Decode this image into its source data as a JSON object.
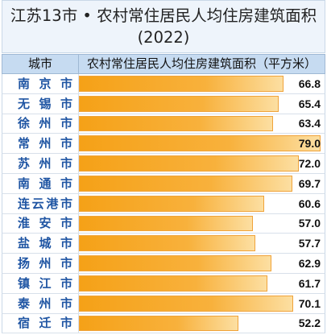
{
  "colors": {
    "bar_start": "#F5A117",
    "bar_end": "#FCDFA2",
    "category_text": "#1F55A3",
    "header_bg": "#C6DBF1",
    "title_bg": "#EEF4FB"
  },
  "chart_data": {
    "type": "bar",
    "orientation": "horizontal",
    "title": "江苏13市 • 农村常住居民人均住房建筑面积",
    "subtitle": "(2022)",
    "column_headers": [
      "城市",
      "农村常住居民人均住房建筑面积（平方米）"
    ],
    "categories": [
      "南京市",
      "无锡市",
      "徐州市",
      "常州市",
      "苏州市",
      "南通市",
      "连云港市",
      "淮安市",
      "盐城市",
      "扬州市",
      "镇江市",
      "泰州市",
      "宿迁市"
    ],
    "values": [
      66.8,
      65.4,
      63.4,
      79.0,
      72.0,
      69.7,
      60.6,
      57.0,
      57.7,
      62.9,
      61.7,
      70.1,
      52.2
    ],
    "data_labels": [
      "66.8",
      "65.4",
      "63.4",
      "79.0",
      "72.0",
      "69.7",
      "60.6",
      "57.0",
      "57.7",
      "62.9",
      "61.7",
      "70.1",
      "52.2"
    ],
    "xlim": [
      0,
      79.0
    ],
    "grid": false,
    "legend": "none"
  }
}
